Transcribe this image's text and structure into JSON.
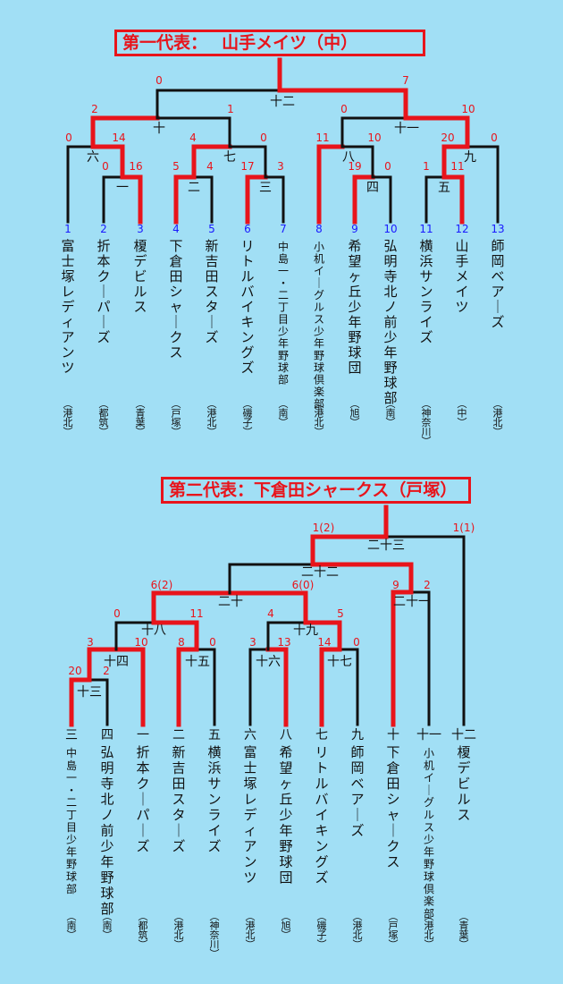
{
  "bracket1": {
    "title": "第一代表：　 山手メイツ（中）",
    "teams": [
      {
        "num": "1",
        "name": "富士塚レディアンツ",
        "area": "（港北）"
      },
      {
        "num": "2",
        "name": "折本クーパーズ",
        "area": "（都筑）"
      },
      {
        "num": "3",
        "name": "榎デビルス",
        "area": "（青葉）"
      },
      {
        "num": "4",
        "name": "下倉田シャークス",
        "area": "（戸塚）"
      },
      {
        "num": "5",
        "name": "新吉田スターズ",
        "area": "（港北）"
      },
      {
        "num": "6",
        "name": "リトルバイキングズ",
        "area": "（磯子）"
      },
      {
        "num": "7",
        "name": "中島一・二丁目少年野球部",
        "area": "（南）"
      },
      {
        "num": "8",
        "name": "小机イーグルス少年野球倶楽部",
        "area": "（港北）"
      },
      {
        "num": "9",
        "name": "希望ヶ丘少年野球団",
        "area": "（旭）"
      },
      {
        "num": "10",
        "name": "弘明寺北ノ前少年野球部",
        "area": "（南）"
      },
      {
        "num": "11",
        "name": "横浜サンライズ",
        "area": "（神奈川）"
      },
      {
        "num": "12",
        "name": "山手メイツ",
        "area": "（中）"
      },
      {
        "num": "13",
        "name": "師岡ベアーズ",
        "area": "（港北）"
      }
    ],
    "match_labels": [
      "一",
      "二",
      "三",
      "四",
      "五",
      "六",
      "七",
      "八",
      "九",
      "十",
      "十一",
      "十二"
    ],
    "scores": [
      "0",
      "16",
      "5",
      "4",
      "17",
      "3",
      "19",
      "0",
      "1",
      "11",
      "0",
      "14",
      "4",
      "0",
      "11",
      "10",
      "20",
      "0",
      "2",
      "1",
      "0",
      "10",
      "0",
      "7"
    ]
  },
  "bracket2": {
    "title": "第二代表：下倉田シャークス（戸塚）",
    "teams": [
      {
        "num": "三",
        "name": "中島一・二丁目少年野球部",
        "area": "（南）"
      },
      {
        "num": "四",
        "name": "弘明寺北ノ前少年野球部",
        "area": "（南）"
      },
      {
        "num": "一",
        "name": "折本クーパーズ",
        "area": "（都筑）"
      },
      {
        "num": "二",
        "name": "新吉田スターズ",
        "area": "（港北）"
      },
      {
        "num": "五",
        "name": "横浜サンライズ",
        "area": "（神奈川）"
      },
      {
        "num": "六",
        "name": "富士塚レディアンツ",
        "area": "（港北）"
      },
      {
        "num": "八",
        "name": "希望ヶ丘少年野球団",
        "area": "（旭）"
      },
      {
        "num": "七",
        "name": "リトルバイキングズ",
        "area": "（磯子）"
      },
      {
        "num": "九",
        "name": "師岡ベアーズ",
        "area": "（港北）"
      },
      {
        "num": "十",
        "name": "下倉田シャークス",
        "area": "（戸塚）"
      },
      {
        "num": "十一",
        "name": "小机イーグルス少年野球倶楽部",
        "area": "（港北）"
      },
      {
        "num": "十二",
        "name": "榎デビルス",
        "area": "（青葉）"
      }
    ],
    "match_labels": [
      "十三",
      "十四",
      "十五",
      "十六",
      "十七",
      "十八",
      "十九",
      "二十",
      "二十一",
      "二十二",
      "二十三"
    ],
    "scores": [
      "20",
      "2",
      "3",
      "10",
      "8",
      "0",
      "3",
      "13",
      "14",
      "0",
      "0",
      "11",
      "4",
      "5",
      "9",
      "2",
      "6(2)",
      "6(0)",
      "1(2)",
      "1(1)"
    ]
  }
}
